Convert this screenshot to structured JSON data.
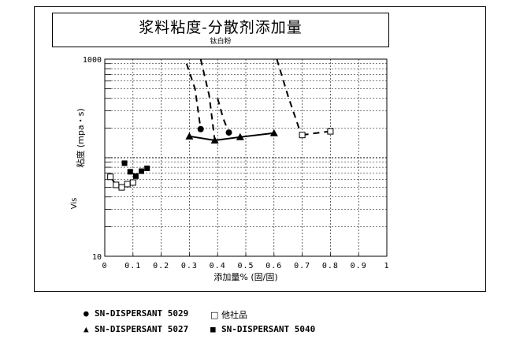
{
  "title": "浆料粘度-分散剂添加量",
  "subtitle": "钛白粉",
  "chart_data": {
    "type": "scatter",
    "xlabel": "添加量% (固/固)",
    "ylabel": "粘度 (mpa・s)",
    "ylabel_fragment": "Vis",
    "xlim": [
      0,
      1
    ],
    "ylim": [
      10,
      1000
    ],
    "yscale": "log",
    "grid": true,
    "x_tick_labels": [
      "0",
      "0.1",
      "0.2",
      "0.3",
      "0.4",
      "0.5",
      "0.6",
      "0.7",
      "0.8",
      "0.9",
      "1"
    ],
    "x_ticks": [
      0,
      0.1,
      0.2,
      0.3,
      0.4,
      0.5,
      0.6,
      0.7,
      0.8,
      0.9,
      1
    ],
    "y_tick_labels": [
      "10",
      "1000"
    ],
    "y_ticks": [
      10,
      1000
    ],
    "series": [
      {
        "name": "SN-DISPERSANT 5029",
        "marker": "circle",
        "points": [
          [
            0.34,
            195
          ],
          [
            0.44,
            180
          ]
        ],
        "lines": [
          {
            "dashed": true,
            "points": [
              [
                0.29,
                900
              ],
              [
                0.32,
                500
              ],
              [
                0.34,
                195
              ]
            ]
          },
          {
            "dashed": true,
            "points": [
              [
                0.4,
                400
              ],
              [
                0.42,
                250
              ],
              [
                0.44,
                180
              ]
            ]
          }
        ]
      },
      {
        "name": "SN-DISPERSANT 5027",
        "marker": "triangle",
        "points": [
          [
            0.3,
            165
          ],
          [
            0.39,
            150
          ],
          [
            0.48,
            162
          ],
          [
            0.6,
            178
          ]
        ],
        "lines": [
          {
            "dashed": false,
            "points": [
              [
                0.3,
                165
              ],
              [
                0.39,
                150
              ],
              [
                0.48,
                162
              ],
              [
                0.6,
                178
              ]
            ]
          },
          {
            "dashed": true,
            "points": [
              [
                0.34,
                1000
              ],
              [
                0.37,
                430
              ],
              [
                0.39,
                150
              ]
            ]
          },
          {
            "dashed": true,
            "points": [
              [
                0.61,
                1000
              ],
              [
                0.65,
                420
              ],
              [
                0.7,
                160
              ]
            ]
          }
        ]
      },
      {
        "name": "SN-DISPERSANT 5040",
        "marker": "square-filled",
        "points": [
          [
            0.07,
            88
          ],
          [
            0.09,
            72
          ],
          [
            0.11,
            65
          ],
          [
            0.13,
            73
          ],
          [
            0.15,
            78
          ]
        ]
      },
      {
        "name": "他社品",
        "marker": "square-open",
        "points": [
          [
            0.02,
            64
          ],
          [
            0.04,
            53
          ],
          [
            0.06,
            50
          ],
          [
            0.08,
            54
          ],
          [
            0.1,
            56
          ],
          [
            0.7,
            170
          ],
          [
            0.8,
            185
          ]
        ],
        "lines": [
          {
            "dashed": false,
            "points": [
              [
                0.02,
                64
              ],
              [
                0.04,
                53
              ],
              [
                0.06,
                50
              ],
              [
                0.08,
                54
              ],
              [
                0.1,
                56
              ]
            ]
          },
          {
            "dashed": true,
            "points": [
              [
                0.7,
                170
              ],
              [
                0.75,
                178
              ],
              [
                0.8,
                185
              ]
            ]
          }
        ]
      }
    ],
    "legend_position": "bottom"
  },
  "legend": [
    {
      "symbol": "●",
      "label": "SN-DISPERSANT 5029"
    },
    {
      "symbol": "□",
      "label": "他社品"
    },
    {
      "symbol": "▲",
      "label": "SN-DISPERSANT 5027"
    },
    {
      "symbol": "■",
      "label": "SN-DISPERSANT 5040"
    }
  ]
}
